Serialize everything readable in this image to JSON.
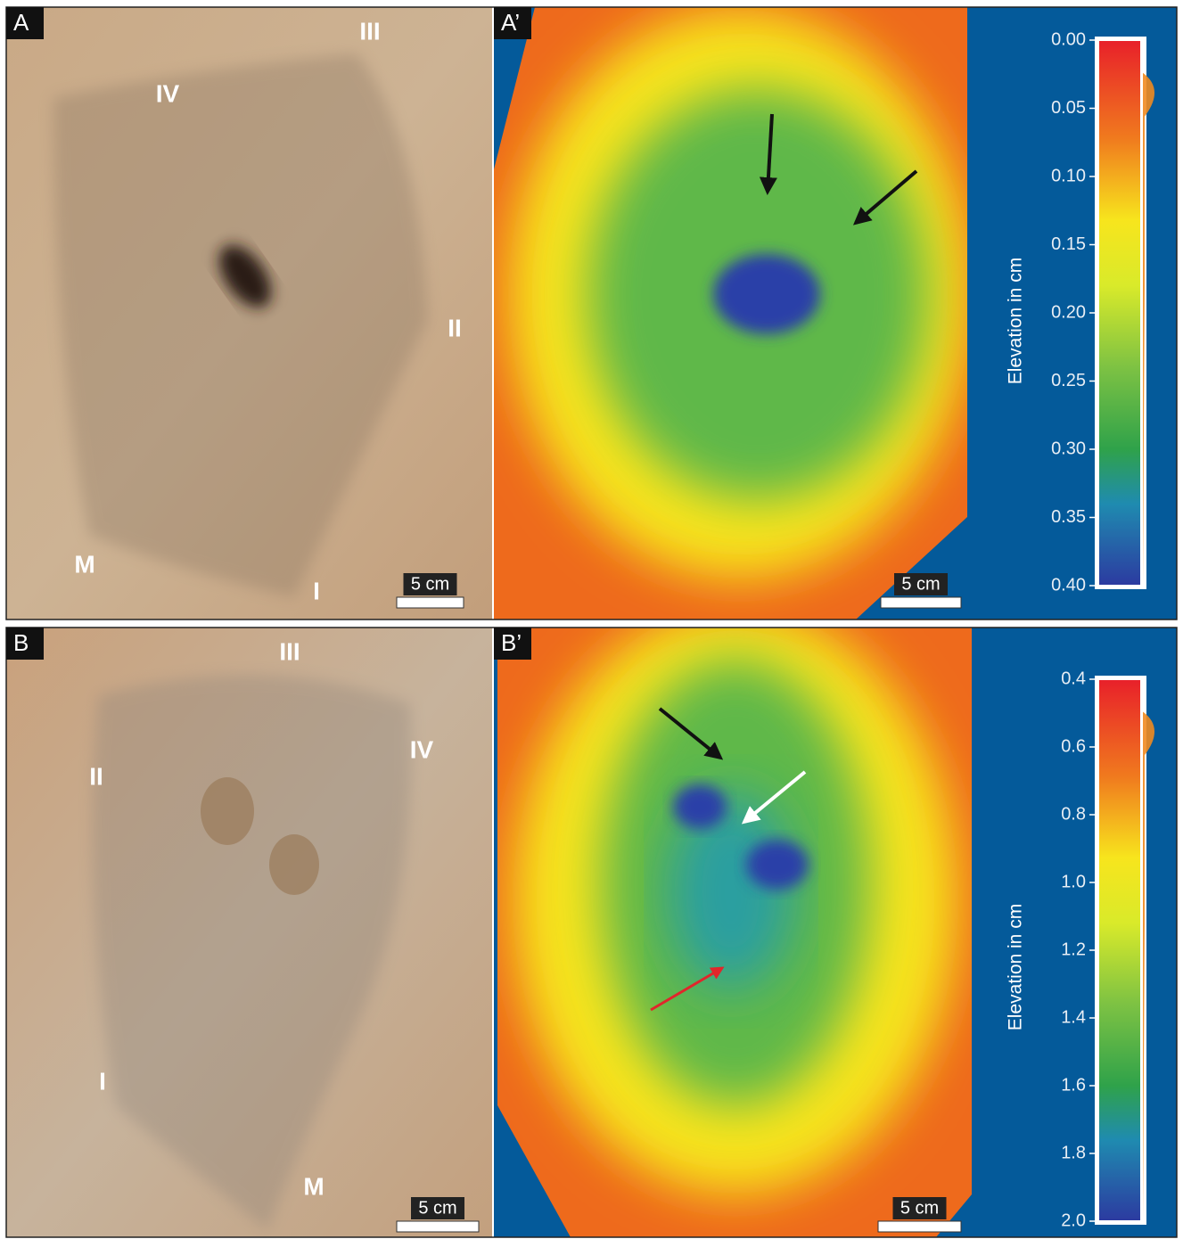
{
  "panels": [
    {
      "label": "A",
      "digits": [
        "III",
        "IV",
        "II",
        "M",
        "I"
      ],
      "scale_bar": "5 cm"
    },
    {
      "label": "A’",
      "scale_bar": "5 cm"
    },
    {
      "label": "B",
      "digits": [
        "III",
        "IV",
        "II",
        "I",
        "M"
      ],
      "scale_bar": "5 cm"
    },
    {
      "label": "B’",
      "scale_bar": "5 cm"
    }
  ],
  "colorbars": [
    {
      "axis_label": "Elevation in cm",
      "lim": [
        0,
        0.4
      ],
      "ticks": [
        {
          "value": 0,
          "label": "0.00"
        },
        0.05,
        {
          "value": 0.1,
          "label": "0.10"
        },
        0.15,
        {
          "value": 0.2,
          "label": "0.20"
        },
        0.25,
        {
          "value": 0.3,
          "label": "0.30"
        },
        0.35,
        {
          "value": 0.4,
          "label": "0.40"
        }
      ]
    },
    {
      "axis_label": "Elevation in cm",
      "lim": [
        0.4,
        2
      ],
      "ticks": [
        0.4,
        0.6,
        0.8,
        {
          "value": 1,
          "label": "1.0"
        },
        1.2,
        1.4,
        1.6,
        1.8,
        {
          "value": 2,
          "label": "2.0"
        }
      ]
    }
  ]
}
